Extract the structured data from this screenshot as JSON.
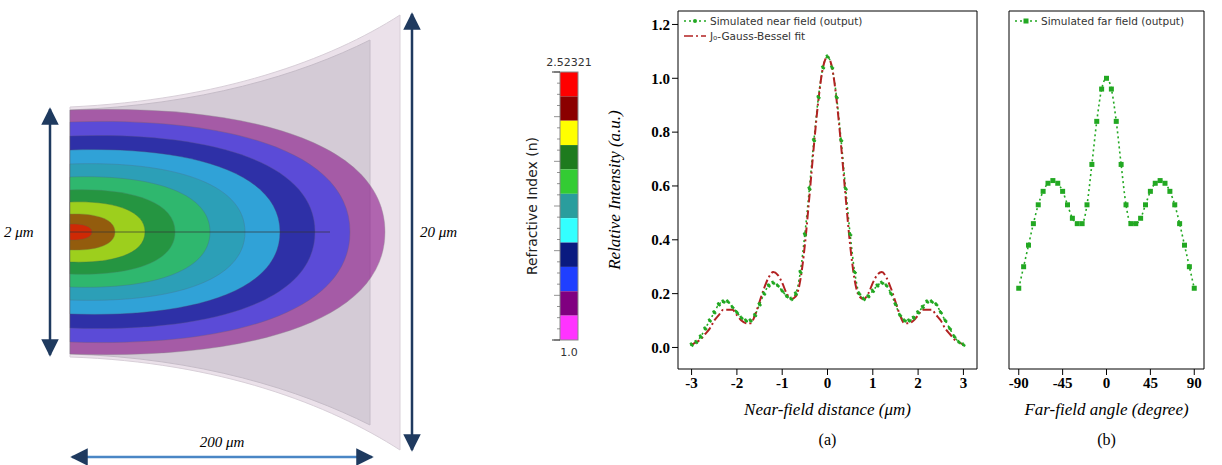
{
  "diagram": {
    "input_width": "2 μm",
    "output_width": "20 μm",
    "length": "200 μm"
  },
  "colorbar": {
    "title": "Refractive Index (n)",
    "range": [
      1,
      2.52321
    ],
    "ticks": [
      {
        "value": 1,
        "label": "1.0"
      },
      2.52321
    ],
    "colors": [
      "#ff0000",
      "#8b0000",
      "#ffff00",
      "#1e7b1e",
      "#33cc33",
      "#2a9d9d",
      "#33ffff",
      "#0a1a80",
      "#1f3fff",
      "#800080",
      "#ff33ff"
    ]
  },
  "chart_data": [
    {
      "type": "line",
      "panel_label": "(a)",
      "x_label": "Near-field distance (μm)",
      "y_label": "Relative Intensity (a.u.)",
      "x": [
        -3,
        -2.9,
        -2.8,
        -2.7,
        -2.6,
        -2.5,
        -2.4,
        -2.3,
        -2.2,
        -2.1,
        -2,
        -1.9,
        -1.8,
        -1.7,
        -1.6,
        -1.5,
        -1.4,
        -1.3,
        -1.2,
        -1.1,
        -1,
        -0.9,
        -0.8,
        -0.7,
        -0.6,
        -0.5,
        -0.4,
        -0.3,
        -0.2,
        -0.1,
        0,
        0.1,
        0.2,
        0.3,
        0.4,
        0.5,
        0.6,
        0.7,
        0.8,
        0.9,
        1,
        1.1,
        1.2,
        1.3,
        1.4,
        1.5,
        1.6,
        1.7,
        1.8,
        1.9,
        2,
        2.1,
        2.2,
        2.3,
        2.4,
        2.5,
        2.6,
        2.7,
        2.8,
        2.9,
        3
      ],
      "series": [
        {
          "name": "Simulated near field (output)",
          "color": "#22a822",
          "marker": "circle",
          "line_style": "dotted",
          "values": [
            0.01,
            0.02,
            0.04,
            0.07,
            0.1,
            0.13,
            0.16,
            0.17,
            0.17,
            0.15,
            0.13,
            0.11,
            0.1,
            0.1,
            0.12,
            0.16,
            0.2,
            0.23,
            0.24,
            0.23,
            0.21,
            0.19,
            0.18,
            0.2,
            0.28,
            0.42,
            0.59,
            0.77,
            0.93,
            1.04,
            1.08,
            1.04,
            0.93,
            0.77,
            0.59,
            0.42,
            0.28,
            0.2,
            0.18,
            0.19,
            0.21,
            0.23,
            0.24,
            0.23,
            0.2,
            0.16,
            0.12,
            0.1,
            0.1,
            0.11,
            0.13,
            0.15,
            0.17,
            0.17,
            0.16,
            0.13,
            0.1,
            0.07,
            0.04,
            0.02,
            0.01
          ]
        },
        {
          "name": "J₀-Gauss-Bessel fit",
          "color": "#b22222",
          "marker": "none",
          "line_style": "dashdot",
          "values": [
            0.01,
            0.02,
            0.03,
            0.05,
            0.07,
            0.1,
            0.12,
            0.14,
            0.14,
            0.14,
            0.12,
            0.1,
            0.09,
            0.09,
            0.12,
            0.17,
            0.22,
            0.26,
            0.28,
            0.27,
            0.24,
            0.2,
            0.18,
            0.19,
            0.25,
            0.38,
            0.56,
            0.75,
            0.92,
            1.04,
            1.08,
            1.04,
            0.92,
            0.75,
            0.56,
            0.38,
            0.25,
            0.19,
            0.18,
            0.2,
            0.24,
            0.27,
            0.28,
            0.26,
            0.22,
            0.17,
            0.12,
            0.09,
            0.09,
            0.1,
            0.12,
            0.14,
            0.14,
            0.14,
            0.12,
            0.1,
            0.07,
            0.05,
            0.03,
            0.02,
            0.01
          ]
        }
      ],
      "xlim": [
        -3.3,
        3.3
      ],
      "xticks": [
        -3,
        -2,
        -1,
        0,
        1,
        2,
        3
      ],
      "ylim": [
        -0.08,
        1.25
      ],
      "yticks": [
        {
          "value": 0,
          "label": "0.0"
        },
        0.2,
        0.4,
        0.6,
        0.8,
        {
          "value": 1,
          "label": "1.0"
        },
        1.2
      ],
      "legend": "top-left"
    },
    {
      "type": "line",
      "panel_label": "(b)",
      "x_label": "Far-field angle (degree)",
      "x": [
        -90,
        -85,
        -80,
        -75,
        -70,
        -65,
        -60,
        -55,
        -50,
        -45,
        -40,
        -35,
        -30,
        -25,
        -20,
        -15,
        -10,
        -5,
        0,
        5,
        10,
        15,
        20,
        25,
        30,
        35,
        40,
        45,
        50,
        55,
        60,
        65,
        70,
        75,
        80,
        85,
        90
      ],
      "series": [
        {
          "name": "Simulated far field (output)",
          "color": "#22a822",
          "marker": "square",
          "line_style": "dotted",
          "values": [
            0.22,
            0.3,
            0.38,
            0.46,
            0.53,
            0.58,
            0.61,
            0.62,
            0.61,
            0.58,
            0.53,
            0.48,
            0.46,
            0.46,
            0.53,
            0.68,
            0.84,
            0.96,
            1.0,
            0.96,
            0.84,
            0.68,
            0.53,
            0.46,
            0.46,
            0.48,
            0.53,
            0.58,
            0.61,
            0.62,
            0.61,
            0.58,
            0.53,
            0.46,
            0.38,
            0.3,
            0.22
          ]
        }
      ],
      "xlim": [
        -100,
        100
      ],
      "xticks": [
        -90,
        -45,
        0,
        45,
        90
      ],
      "ylim": [
        -0.08,
        1.25
      ],
      "tick_labels": "x",
      "legend": "top-left"
    }
  ]
}
